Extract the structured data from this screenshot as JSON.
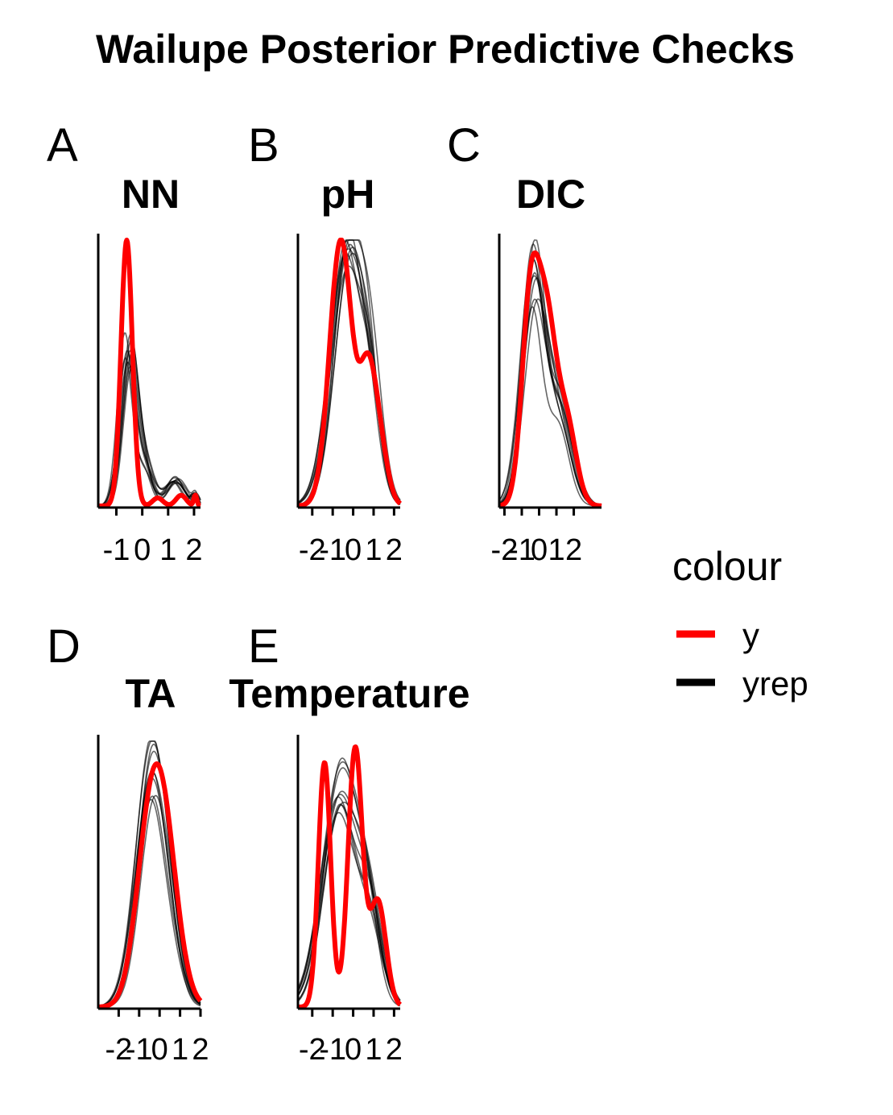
{
  "title": "Wailupe Posterior Predictive Checks",
  "colors": {
    "y": "#ff0000",
    "yrep": "#000000"
  },
  "legend": {
    "title": "colour",
    "entries": [
      {
        "label": "y",
        "color": "#ff0000"
      },
      {
        "label": "yrep",
        "color": "#000000"
      }
    ]
  },
  "chart_data": [
    {
      "tag": "A",
      "title": "NN",
      "type": "line",
      "xlim": [
        -1.7,
        2.25
      ],
      "ylim": [
        0,
        1.0
      ],
      "xticks": [
        -1,
        0,
        1,
        2
      ],
      "ticklabels": [
        "-1",
        "0",
        "1",
        "2"
      ],
      "y_peaks": [
        [
          -0.6,
          1.0,
          0.22
        ],
        [
          0.6,
          0.03,
          0.2
        ],
        [
          1.5,
          0.04,
          0.2
        ],
        [
          2.05,
          0.04,
          0.06
        ]
      ],
      "yrep_peaks": [
        [
          -0.55,
          0.58,
          0.3
        ],
        [
          0.15,
          0.12,
          0.3
        ],
        [
          1.3,
          0.1,
          0.35
        ],
        [
          2.05,
          0.04,
          0.1
        ]
      ],
      "n_yrep": 10
    },
    {
      "tag": "B",
      "title": "pH",
      "type": "line",
      "xlim": [
        -2.7,
        2.3
      ],
      "ylim": [
        0,
        1.0
      ],
      "xticks": [
        -2,
        -1,
        0,
        1,
        2
      ],
      "ticklabels": [
        "-2",
        "-1",
        "0",
        "1",
        "2"
      ],
      "y_peaks": [
        [
          -0.6,
          1.0,
          0.55
        ],
        [
          0.7,
          0.45,
          0.4
        ],
        [
          1.3,
          0.2,
          0.4
        ]
      ],
      "yrep_peaks": [
        [
          -0.3,
          0.88,
          0.75
        ],
        [
          0.8,
          0.35,
          0.55
        ]
      ],
      "n_yrep": 10
    },
    {
      "tag": "C",
      "title": "DIC",
      "type": "line",
      "xlim": [
        -2.3,
        3.6
      ],
      "ylim": [
        0,
        1.0
      ],
      "xticks": [
        -2,
        -1,
        0,
        1,
        2
      ],
      "ticklabels": [
        "-2",
        "-1",
        "0",
        "1",
        "2"
      ],
      "y_peaks": [
        [
          -0.5,
          0.75,
          0.5
        ],
        [
          0.45,
          0.65,
          0.55
        ],
        [
          1.6,
          0.3,
          0.55
        ]
      ],
      "yrep_peaks": [
        [
          -0.3,
          0.85,
          0.65
        ],
        [
          1.2,
          0.35,
          0.7
        ]
      ],
      "n_yrep": 10
    },
    {
      "tag": "D",
      "title": "TA",
      "type": "line",
      "xlim": [
        -3.0,
        2.0
      ],
      "ylim": [
        0,
        1.0
      ],
      "xticks": [
        -2,
        -1,
        0,
        1,
        2
      ],
      "ticklabels": [
        "-2",
        "-1",
        "0",
        "1",
        "2"
      ],
      "y_peaks": [
        [
          0.0,
          0.82,
          0.75
        ],
        [
          -0.8,
          0.2,
          0.6
        ]
      ],
      "yrep_peaks": [
        [
          -0.4,
          0.88,
          0.7
        ],
        [
          0.5,
          0.15,
          0.6
        ]
      ],
      "n_yrep": 10
    },
    {
      "tag": "E",
      "title": "Temperature",
      "type": "line",
      "xlim": [
        -2.7,
        2.3
      ],
      "ylim": [
        0,
        1.0
      ],
      "xticks": [
        -2,
        -1,
        0,
        1,
        2
      ],
      "ticklabels": [
        "-2",
        "-1",
        "0",
        "1",
        "2"
      ],
      "y_peaks": [
        [
          -1.4,
          0.92,
          0.3
        ],
        [
          0.1,
          0.97,
          0.35
        ],
        [
          1.2,
          0.4,
          0.4
        ]
      ],
      "yrep_peaks": [
        [
          -0.7,
          0.88,
          0.85
        ],
        [
          0.8,
          0.3,
          0.6
        ]
      ],
      "n_yrep": 10
    }
  ]
}
